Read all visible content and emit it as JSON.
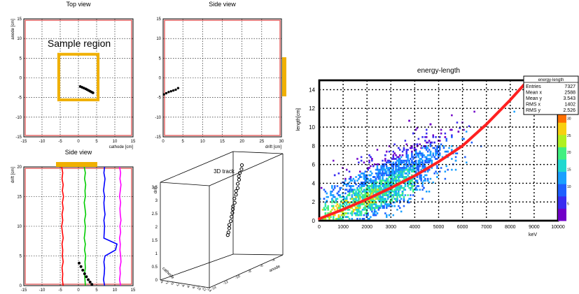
{
  "panels": {
    "top_view": {
      "title": "Top view",
      "xlabel": "cathode [cm]",
      "ylabel": "anode [cm]",
      "xticks": [
        "-15",
        "-10",
        "-5",
        "0",
        "5",
        "10",
        "15"
      ],
      "yticks": [
        "-15",
        "-10",
        "-5",
        "0",
        "5",
        "10",
        "15"
      ],
      "annotation": "Sample region",
      "track_xy": [
        [
          0.5,
          -2.2
        ],
        [
          1.0,
          -2.4
        ],
        [
          1.5,
          -2.6
        ],
        [
          2.0,
          -2.8
        ],
        [
          2.4,
          -3.0
        ],
        [
          2.8,
          -3.2
        ],
        [
          3.2,
          -3.4
        ],
        [
          3.6,
          -3.6
        ],
        [
          4.0,
          -3.8
        ]
      ]
    },
    "side_view_1": {
      "title": "Side view",
      "xlabel": "drift [cm]",
      "xticks": [
        "0",
        "5",
        "10",
        "15",
        "20",
        "25",
        "30"
      ],
      "yticks": [
        "-15",
        "-10",
        "-5",
        "0",
        "5",
        "10",
        "15"
      ],
      "track_xy": [
        [
          0.2,
          -4.2
        ],
        [
          0.8,
          -3.9
        ],
        [
          1.4,
          -3.6
        ],
        [
          2.0,
          -3.4
        ],
        [
          2.6,
          -3.2
        ],
        [
          3.2,
          -3.0
        ],
        [
          3.8,
          -2.6
        ]
      ]
    },
    "side_view_2": {
      "title": "Side view",
      "xlabel": "cathode [cm]",
      "ylabel": "drift [cm]",
      "xticks": [
        "-15",
        "-10",
        "-5",
        "0",
        "5",
        "10",
        "15"
      ],
      "yticks": [
        "0",
        "5",
        "10",
        "15",
        "20"
      ],
      "traces": [
        {
          "color": "#ff0000",
          "xs": [
            -4.6,
            -4.3,
            -4.5,
            -4.2,
            -4.4,
            -4.1,
            -4.4,
            -4.2,
            -4.5,
            -4.3,
            -4.6,
            -4.4,
            -4.2,
            -4.5,
            -4.3,
            -4.4,
            -4.2,
            -4.5,
            -4.3,
            -4.4,
            -4.2
          ]
        },
        {
          "color": "#00cc00",
          "xs": [
            1.6,
            1.9,
            1.7,
            2.0,
            1.8,
            1.9,
            1.6,
            1.8,
            2.0,
            1.7,
            1.9,
            1.8,
            1.6,
            1.9,
            1.7,
            2.0,
            1.8,
            1.9,
            1.7,
            1.8,
            1.9
          ]
        },
        {
          "color": "#0000ff",
          "xs": [
            7.2,
            7.0,
            7.3,
            7.1,
            6.9,
            7.2,
            7.0,
            7.1,
            7.3,
            7.0,
            7.2,
            7.1,
            7.0,
            10.6,
            10.2,
            7.3,
            7.0,
            7.2,
            7.1,
            6.9,
            7.2
          ]
        },
        {
          "color": "#ff00ff",
          "xs": [
            11.3,
            11.6,
            11.4,
            11.7,
            11.5,
            11.3,
            11.6,
            11.4,
            11.5,
            11.7,
            11.4,
            11.6,
            11.3,
            11.5,
            11.4,
            11.6,
            11.7,
            11.4,
            11.5,
            11.3,
            11.6
          ]
        }
      ],
      "track_xy": [
        [
          0.2,
          3.8
        ],
        [
          0.7,
          3.2
        ],
        [
          1.2,
          2.6
        ],
        [
          1.7,
          2.0
        ],
        [
          2.2,
          1.5
        ],
        [
          2.7,
          1.0
        ],
        [
          3.2,
          0.6
        ],
        [
          3.7,
          0.2
        ]
      ]
    },
    "track_3d": {
      "title": "3D track",
      "xlabel": "cathode",
      "ylabel": "anode",
      "zlabel": "drift",
      "zticks": [
        "0",
        "0.5",
        "1",
        "1.5",
        "2",
        "2.5",
        "3",
        "3.5"
      ],
      "xticks": [
        "4",
        "2",
        "0",
        "-2",
        "-4",
        "-6",
        "-8",
        "-10",
        "-12",
        "-14"
      ],
      "yticks": [
        "-14",
        "-12",
        "-10",
        "-8",
        "-6",
        "-4"
      ]
    },
    "energy_length": {
      "title": "energy-length",
      "xlabel": "keV",
      "ylabel": "length[cm]",
      "xticks": [
        "0",
        "1000",
        "2000",
        "3000",
        "4000",
        "5000",
        "6000",
        "7000",
        "8000",
        "9000",
        "10000"
      ],
      "yticks": [
        "0",
        "2",
        "4",
        "6",
        "8",
        "10",
        "12",
        "14"
      ],
      "zticks": [
        "5",
        "10",
        "15",
        "20",
        "25",
        "30",
        "35"
      ],
      "stats": {
        "title": "energy-length",
        "rows": [
          {
            "label": "Entries",
            "value": "7327"
          },
          {
            "label": "Mean x",
            "value": "2588"
          },
          {
            "label": "Mean y",
            "value": "3.543"
          },
          {
            "label": "RMS x",
            "value": "1402"
          },
          {
            "label": "RMS y",
            "value": "2.526"
          }
        ]
      }
    }
  },
  "chart_data": [
    {
      "type": "scatter",
      "title": "Top view",
      "xlabel": "cathode [cm]",
      "ylabel": "anode [cm]",
      "xlim": [
        -15,
        15
      ],
      "ylim": [
        -15,
        15
      ],
      "grid": true,
      "annotation": "Sample region",
      "points": [
        [
          0.5,
          -2.2
        ],
        [
          1.0,
          -2.4
        ],
        [
          1.5,
          -2.6
        ],
        [
          2.0,
          -2.8
        ],
        [
          2.4,
          -3.0
        ],
        [
          2.8,
          -3.2
        ],
        [
          3.2,
          -3.4
        ],
        [
          3.6,
          -3.6
        ],
        [
          4.0,
          -3.8
        ]
      ]
    },
    {
      "type": "scatter",
      "title": "Side view",
      "xlabel": "drift [cm]",
      "xlim": [
        0,
        30
      ],
      "ylim": [
        -15,
        15
      ],
      "grid": true
    },
    {
      "type": "line",
      "title": "Side view",
      "xlabel": "cathode [cm]",
      "ylabel": "drift [cm]",
      "xlim": [
        -15,
        15
      ],
      "ylim": [
        0,
        20
      ],
      "grid": true
    },
    {
      "type": "scatter",
      "title": "3D track",
      "xlabel": "cathode",
      "ylabel": "anode",
      "zlabel": "drift",
      "zlim": [
        0,
        3.5
      ]
    },
    {
      "type": "heatmap",
      "title": "energy-length",
      "xlabel": "keV",
      "ylabel": "length[cm]",
      "xlim": [
        0,
        10000
      ],
      "ylim": [
        0,
        15
      ],
      "zlim": [
        0,
        35
      ],
      "grid": true,
      "fit_curve": {
        "x": [
          0,
          1000,
          2000,
          3000,
          4000,
          5000,
          6000,
          7000,
          8000,
          8600
        ],
        "y": [
          0.2,
          1.2,
          2.3,
          3.5,
          4.8,
          6.3,
          8.0,
          10.3,
          12.9,
          14.6
        ]
      }
    }
  ],
  "colors": {
    "frame": "#e05050",
    "orange": "#f0b000",
    "fit": "#ff2020"
  }
}
